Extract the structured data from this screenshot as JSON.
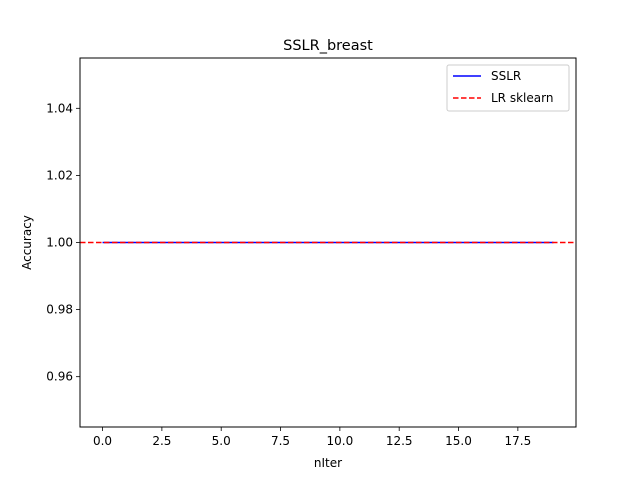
{
  "chart_data": {
    "type": "line",
    "title": "SSLR_breast",
    "xlabel": "nIter",
    "ylabel": "Accuracy",
    "xlim": [
      -0.95,
      19.95
    ],
    "ylim": [
      0.945,
      1.055
    ],
    "x_ticks": [
      0.0,
      2.5,
      5.0,
      7.5,
      10.0,
      12.5,
      15.0,
      17.5
    ],
    "x_tick_labels": [
      "0.0",
      "2.5",
      "5.0",
      "7.5",
      "10.0",
      "12.5",
      "15.0",
      "17.5"
    ],
    "y_ticks": [
      0.96,
      0.98,
      1.0,
      1.02,
      1.04
    ],
    "y_tick_labels": [
      "0.96",
      "0.98",
      "1.00",
      "1.02",
      "1.04"
    ],
    "grid": false,
    "legend_position": "upper right",
    "series": [
      {
        "name": "SSLR",
        "color": "#0000ff",
        "style": "solid",
        "x": [
          0,
          1,
          2,
          3,
          4,
          5,
          6,
          7,
          8,
          9,
          10,
          11,
          12,
          13,
          14,
          15,
          16,
          17,
          18,
          19
        ],
        "values": [
          1.0,
          1.0,
          1.0,
          1.0,
          1.0,
          1.0,
          1.0,
          1.0,
          1.0,
          1.0,
          1.0,
          1.0,
          1.0,
          1.0,
          1.0,
          1.0,
          1.0,
          1.0,
          1.0,
          1.0
        ]
      },
      {
        "name": "LR sklearn",
        "color": "#ff0000",
        "style": "dashed",
        "hline": 1.0
      }
    ]
  }
}
